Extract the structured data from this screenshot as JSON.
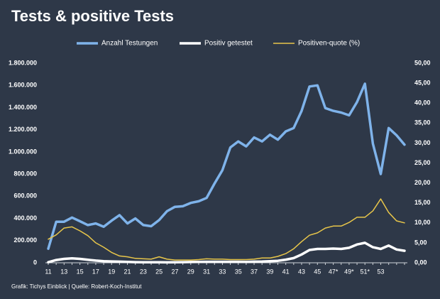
{
  "chart_data": {
    "type": "line",
    "title": "Tests & positive Tests",
    "source": "Grafik: Tichys Einblick | Quelle: Robert-Koch-Institut",
    "categories": [
      "11",
      null,
      "13",
      null,
      "15",
      null,
      "17",
      null,
      "19",
      null,
      "21",
      null,
      "23",
      null,
      "25",
      null,
      "27",
      null,
      "29",
      null,
      "31",
      null,
      "33",
      null,
      "35",
      null,
      "37",
      null,
      "39",
      null,
      "41",
      null,
      "43",
      null,
      "45",
      null,
      "47*",
      null,
      "49*",
      null,
      "51*",
      null,
      "53",
      null,
      null,
      null
    ],
    "series": [
      {
        "name": "Anzahl Testungen",
        "color": "#7fb3ea",
        "width": 3.5,
        "axis": "y",
        "values": [
          127000,
          370000,
          370000,
          408000,
          375000,
          340000,
          355000,
          325000,
          380000,
          430000,
          355000,
          400000,
          340000,
          330000,
          385000,
          465000,
          505000,
          510000,
          540000,
          555000,
          585000,
          715000,
          835000,
          1040000,
          1095000,
          1050000,
          1130000,
          1095000,
          1155000,
          1110000,
          1185000,
          1215000,
          1370000,
          1590000,
          1600000,
          1395000,
          1370000,
          1355000,
          1330000,
          1450000,
          1615000,
          1075000,
          800000,
          1215000,
          1150000,
          1065000
        ]
      },
      {
        "name": "Positiv getestet",
        "color": "#ffffff",
        "width": 3.5,
        "axis": "y",
        "values": [
          5000,
          25000,
          35000,
          40000,
          35000,
          27000,
          20000,
          15000,
          12000,
          10000,
          8000,
          6000,
          5000,
          5000,
          5000,
          4000,
          5000,
          6000,
          7000,
          8000,
          9000,
          9000,
          9000,
          9000,
          9000,
          8000,
          10000,
          11000,
          14000,
          18000,
          28000,
          42000,
          75000,
          115000,
          125000,
          125000,
          128000,
          125000,
          135000,
          165000,
          180000,
          140000,
          125000,
          155000,
          120000,
          108000
        ]
      },
      {
        "name": "Positiven-quote (%)",
        "color": "#e8c64a",
        "width": 1.5,
        "axis": "y2",
        "values": [
          5.9,
          7,
          8.7,
          9,
          8,
          6.8,
          5,
          3.9,
          2.6,
          1.7,
          1.5,
          1.1,
          1,
          0.9,
          1.5,
          0.9,
          0.7,
          0.7,
          0.7,
          0.8,
          1,
          0.9,
          0.9,
          0.8,
          0.8,
          0.8,
          0.9,
          1.2,
          1.2,
          1.6,
          2.3,
          3.5,
          5.3,
          6.9,
          7.5,
          8.7,
          9.2,
          9.2,
          10.1,
          11.4,
          11.4,
          13,
          16,
          12.6,
          10.5,
          10
        ]
      }
    ],
    "ylim": [
      0,
      1800000
    ],
    "yticks": [
      0,
      {
        "value": 200000,
        "label": "200.000"
      },
      {
        "value": 400000,
        "label": "400.000"
      },
      {
        "value": 600000,
        "label": "600.000"
      },
      {
        "value": 800000,
        "label": "800.000"
      },
      {
        "value": 1000000,
        "label": "1.000.000"
      },
      {
        "value": 1200000,
        "label": "1.200.000"
      },
      {
        "value": 1400000,
        "label": "1.400.000"
      },
      {
        "value": 1600000,
        "label": "1.600.000"
      },
      {
        "value": 1800000,
        "label": "1.800.000"
      }
    ],
    "y2lim": [
      0,
      50
    ],
    "y2ticks": [
      {
        "value": 0,
        "label": "0,00"
      },
      {
        "value": 5,
        "label": "5,00"
      },
      {
        "value": 10,
        "label": "10,00"
      },
      {
        "value": 15,
        "label": "15,00"
      },
      {
        "value": 20,
        "label": "20,00"
      },
      {
        "value": 25,
        "label": "25,00"
      },
      {
        "value": 30,
        "label": "30,00"
      },
      {
        "value": 35,
        "label": "35,00"
      },
      {
        "value": 40,
        "label": "40,00"
      },
      {
        "value": 45,
        "label": "45,00"
      },
      {
        "value": 50,
        "label": "50,00"
      }
    ],
    "y2color": "#e8c64a",
    "grid": false,
    "legend": "top"
  }
}
